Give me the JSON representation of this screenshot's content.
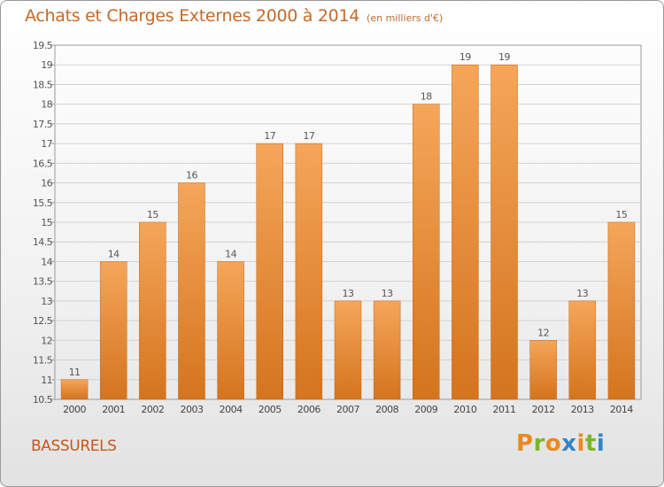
{
  "chart_data": {
    "type": "bar",
    "title": "Achats et Charges Externes 2000 à 2014",
    "unit": "(en milliers d'€)",
    "categories": [
      "2000",
      "2001",
      "2002",
      "2003",
      "2004",
      "2005",
      "2006",
      "2007",
      "2008",
      "2009",
      "2010",
      "2011",
      "2012",
      "2013",
      "2014"
    ],
    "values": [
      11,
      14,
      15,
      16,
      14,
      17,
      17,
      13,
      13,
      18,
      19,
      19,
      12,
      13,
      15
    ],
    "value_labels": [
      "11",
      "14",
      "15",
      "16",
      "14",
      "17",
      "17",
      "13",
      "13",
      "18",
      "19",
      "19",
      "12",
      "13",
      "15"
    ],
    "ylim": [
      10.5,
      19.5
    ],
    "yticks": [
      10.5,
      11,
      11.5,
      12,
      12.5,
      13,
      13.5,
      14,
      14.5,
      15,
      15.5,
      16,
      16.5,
      17,
      17.5,
      18,
      18.5,
      19,
      19.5
    ],
    "ytick_labels": [
      "10.5",
      "11",
      "11.5",
      "12",
      "12.5",
      "13",
      "13.5",
      "14",
      "14.5",
      "15",
      "15.5",
      "16",
      "16.5",
      "17",
      "17.5",
      "18",
      "18.5",
      "19",
      "19.5"
    ],
    "grid": true,
    "bar_color": "#f0923a",
    "bar_color_dark": "#d4741e"
  },
  "footer": {
    "place_name": "BASSURELS",
    "logo": {
      "letters": [
        "P",
        "r",
        "o",
        "x",
        "i",
        "t",
        "i"
      ],
      "colors": [
        "#e98a21",
        "#79b72a",
        "#e98a21",
        "#2f86c9",
        "#e98a21",
        "#79b72a",
        "#2f86c9"
      ]
    }
  }
}
